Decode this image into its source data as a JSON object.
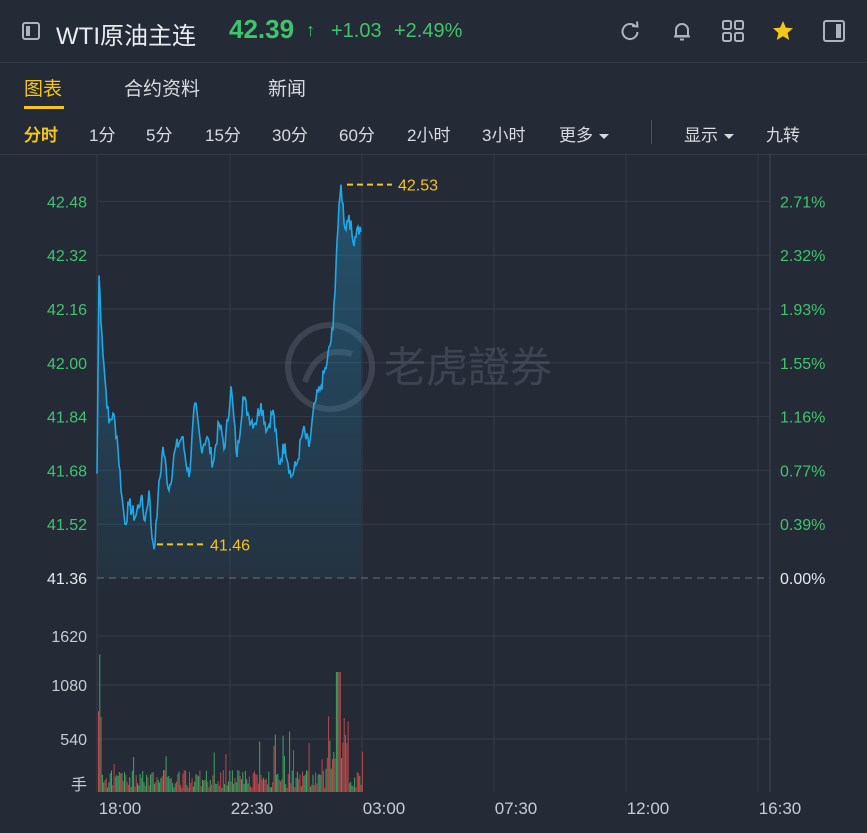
{
  "header": {
    "title": "WTI原油主连",
    "price": "42.39",
    "arrow": "↑",
    "change": "+1.03",
    "change_pct": "+2.49%",
    "icons": [
      "refresh-icon",
      "bell-icon",
      "grid-icon",
      "star-icon",
      "panel-icon"
    ]
  },
  "tabs": [
    {
      "label": "图表",
      "active": true
    },
    {
      "label": "合约资料",
      "active": false
    },
    {
      "label": "新闻",
      "active": false
    }
  ],
  "periods": [
    {
      "label": "分时",
      "active": true
    },
    {
      "label": "1分"
    },
    {
      "label": "5分"
    },
    {
      "label": "15分"
    },
    {
      "label": "30分"
    },
    {
      "label": "60分"
    },
    {
      "label": "2小时"
    },
    {
      "label": "3小时"
    },
    {
      "label": "更多"
    }
  ],
  "options": {
    "display": "显示",
    "nine": "九转"
  },
  "watermark": "老虎證券",
  "chart_data": {
    "type": "line",
    "prev_close": 41.36,
    "high_label": "42.53",
    "low_label": "41.46",
    "price_ticks": [
      "42.48",
      "42.32",
      "42.16",
      "42.00",
      "41.84",
      "41.68",
      "41.52",
      "41.36"
    ],
    "pct_ticks": [
      "2.71%",
      "2.32%",
      "1.93%",
      "1.55%",
      "1.16%",
      "0.77%",
      "0.39%",
      "0.00%"
    ],
    "volume_ticks": [
      "1620",
      "1080",
      "540"
    ],
    "volume_unit": "手",
    "x_ticks": [
      "18:00",
      "22:30",
      "03:00",
      "07:30",
      "12:00",
      "16:30"
    ],
    "price_keypoints": [
      [
        0,
        41.67
      ],
      [
        2,
        42.26
      ],
      [
        5,
        42.08
      ],
      [
        8,
        41.95
      ],
      [
        12,
        41.82
      ],
      [
        16,
        41.85
      ],
      [
        20,
        41.78
      ],
      [
        25,
        41.6
      ],
      [
        28,
        41.52
      ],
      [
        32,
        41.58
      ],
      [
        38,
        41.54
      ],
      [
        44,
        41.6
      ],
      [
        48,
        41.53
      ],
      [
        52,
        41.62
      ],
      [
        55,
        41.48
      ],
      [
        58,
        41.46
      ],
      [
        61,
        41.6
      ],
      [
        66,
        41.75
      ],
      [
        72,
        41.62
      ],
      [
        78,
        41.74
      ],
      [
        85,
        41.78
      ],
      [
        92,
        41.66
      ],
      [
        98,
        41.88
      ],
      [
        104,
        41.75
      ],
      [
        110,
        41.78
      ],
      [
        116,
        41.7
      ],
      [
        122,
        41.82
      ],
      [
        128,
        41.75
      ],
      [
        134,
        41.93
      ],
      [
        140,
        41.72
      ],
      [
        146,
        41.9
      ],
      [
        152,
        41.84
      ],
      [
        158,
        41.82
      ],
      [
        164,
        41.88
      ],
      [
        170,
        41.8
      ],
      [
        176,
        41.86
      ],
      [
        182,
        41.7
      ],
      [
        188,
        41.76
      ],
      [
        194,
        41.66
      ],
      [
        200,
        41.7
      ],
      [
        206,
        41.8
      ],
      [
        212,
        41.75
      ],
      [
        218,
        41.88
      ],
      [
        224,
        41.93
      ],
      [
        230,
        42.0
      ],
      [
        236,
        42.1
      ],
      [
        240,
        42.36
      ],
      [
        244,
        42.53
      ],
      [
        248,
        42.4
      ],
      [
        252,
        42.44
      ],
      [
        256,
        42.36
      ],
      [
        260,
        42.4
      ],
      [
        264,
        42.39
      ]
    ]
  }
}
